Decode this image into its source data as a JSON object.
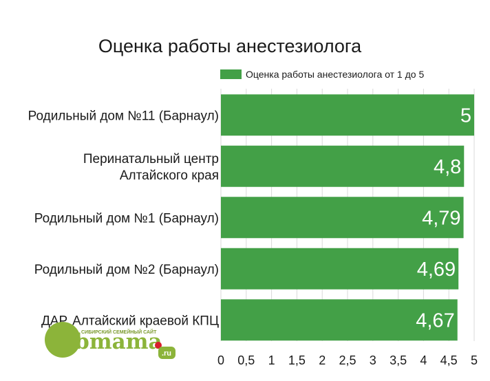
{
  "chart_data": {
    "type": "bar",
    "orientation": "horizontal",
    "title": "Оценка работы анестезиолога",
    "categories": [
      [
        "Родильный дом №11 (Барнаул)"
      ],
      [
        "Перинатальный центр",
        "Алтайского края"
      ],
      [
        "Родильный дом №1 (Барнаул)"
      ],
      [
        "Родильный дом №2 (Барнаул)"
      ],
      [
        "ДАР, Алтайский краевой КПЦ"
      ]
    ],
    "series": [
      {
        "name": "Оценка работы анестезиолога от 1 до 5",
        "values": [
          5,
          4.8,
          4.79,
          4.69,
          4.67
        ],
        "labels": [
          "5",
          "4,8",
          "4,79",
          "4,69",
          "4,67"
        ],
        "color": "#43a047"
      }
    ],
    "xlim": [
      0,
      5
    ],
    "x_ticks": [
      0,
      0.5,
      1,
      1.5,
      2,
      2.5,
      3,
      3.5,
      4,
      4.5,
      5
    ],
    "x_tick_labels": [
      "0",
      "0,5",
      "1",
      "1,5",
      "2",
      "2,5",
      "3",
      "3,5",
      "4",
      "4,5",
      "5"
    ],
    "grid": true,
    "legend_position": "top-right"
  },
  "watermark": {
    "tagline": "СИБИРСКИЙ СЕМЕЙНЫЙ САЙТ",
    "word": "Sibmama",
    "tld": ".ru",
    "color": "#8cb43a"
  }
}
